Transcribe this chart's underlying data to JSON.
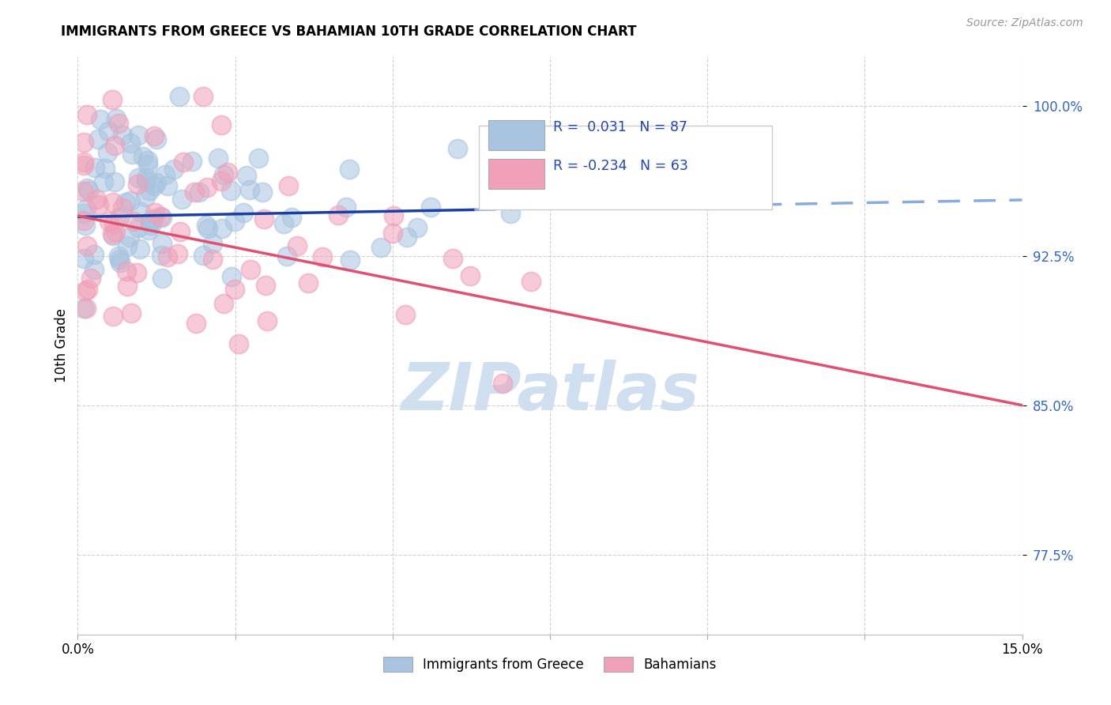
{
  "title": "IMMIGRANTS FROM GREECE VS BAHAMIAN 10TH GRADE CORRELATION CHART",
  "source": "Source: ZipAtlas.com",
  "ylabel": "10th Grade",
  "ytick_labels": [
    "77.5%",
    "85.0%",
    "92.5%",
    "100.0%"
  ],
  "ytick_values": [
    0.775,
    0.85,
    0.925,
    1.0
  ],
  "xlim": [
    0.0,
    0.15
  ],
  "ylim": [
    0.735,
    1.025
  ],
  "legend_blue_label": "Immigrants from Greece",
  "legend_pink_label": "Bahamians",
  "R_blue": 0.031,
  "N_blue": 87,
  "R_pink": -0.234,
  "N_pink": 63,
  "blue_color": "#a8c4e0",
  "pink_color": "#f0a0b8",
  "trendline_blue_solid_color": "#1a3fa0",
  "trendline_blue_dashed_color": "#88aadd",
  "trendline_pink_color": "#e05070",
  "watermark_color": "#d0dff0",
  "background_color": "#ffffff",
  "blue_trendline_x0": 0.0,
  "blue_trendline_y0": 0.9445,
  "blue_trendline_x1": 0.15,
  "blue_trendline_y1": 0.953,
  "blue_solid_split": 0.063,
  "pink_trendline_x0": 0.0,
  "pink_trendline_y0": 0.945,
  "pink_trendline_x1": 0.15,
  "pink_trendline_y1": 0.85
}
